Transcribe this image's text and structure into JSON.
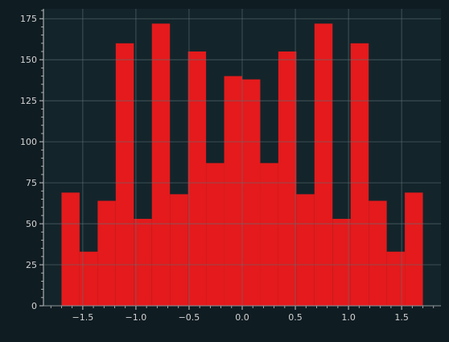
{
  "chart_data": {
    "type": "bar",
    "title": "",
    "xlabel": "",
    "ylabel": "",
    "bin_edges": [
      -1.7,
      -1.53,
      -1.36,
      -1.19,
      -1.02,
      -0.85,
      -0.68,
      -0.51,
      -0.34,
      -0.17,
      0.0,
      0.17,
      0.34,
      0.51,
      0.68,
      0.85,
      1.02,
      1.19,
      1.36,
      1.53,
      1.7
    ],
    "values": [
      69,
      33,
      64,
      160,
      53,
      172,
      68,
      155,
      87,
      140,
      138,
      87,
      155,
      68,
      172,
      53,
      160,
      64,
      33,
      69
    ],
    "xlim": [
      -1.87,
      1.87
    ],
    "ylim": [
      0,
      181
    ],
    "x_ticks": [
      -1.5,
      -1.0,
      -0.5,
      0.0,
      0.5,
      1.0,
      1.5
    ],
    "x_tick_labels": [
      "−1.5",
      "−1.0",
      "−0.5",
      "0.0",
      "0.5",
      "1.0",
      "1.5"
    ],
    "y_ticks": [
      0,
      25,
      50,
      75,
      100,
      125,
      150,
      175
    ],
    "y_tick_labels": [
      "0",
      "25",
      "50",
      "75",
      "100",
      "125",
      "150",
      "175"
    ],
    "grid": true,
    "colors": {
      "bar": "#e41a1c",
      "plot_background": "#13252b",
      "figure_background": "#0f1c22",
      "grid": "#5d6f74",
      "axis": "#c9c9c9",
      "text": "#d4d4d4"
    }
  }
}
